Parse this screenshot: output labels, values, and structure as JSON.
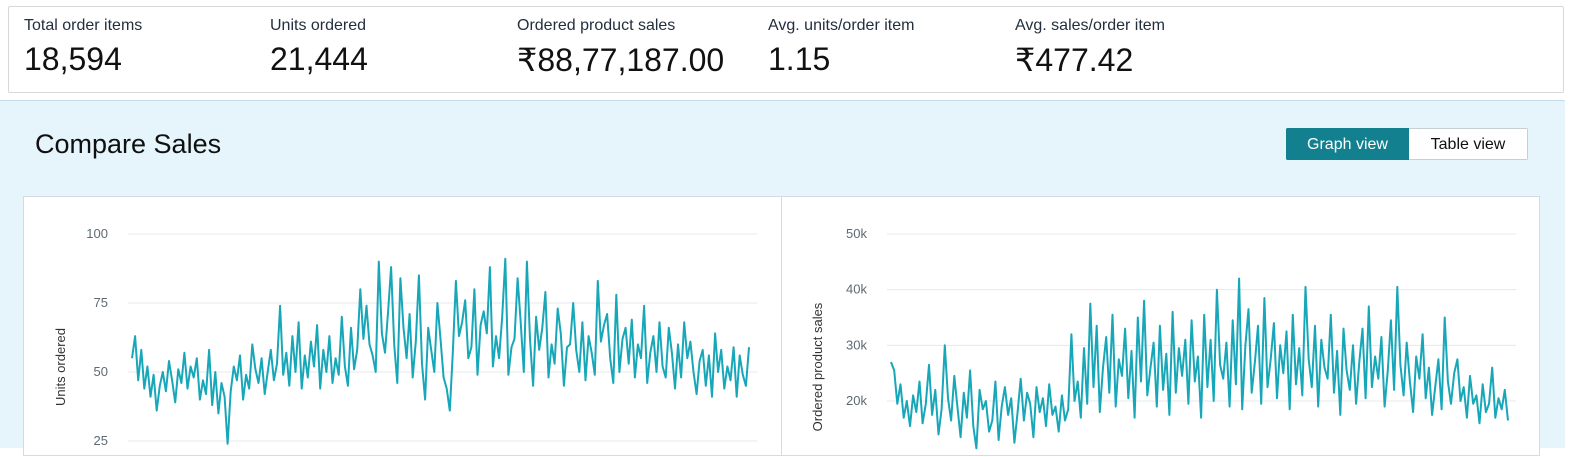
{
  "metrics": [
    {
      "label": "Total order items",
      "value": "18,594"
    },
    {
      "label": "Units ordered",
      "value": "21,444"
    },
    {
      "label": "Ordered product sales",
      "value": "₹88,77,187.00"
    },
    {
      "label": "Avg. units/order item",
      "value": "1.15"
    },
    {
      "label": "Avg. sales/order item",
      "value": "₹477.42"
    }
  ],
  "compare": {
    "title": "Compare Sales",
    "graph_view_label": "Graph view",
    "table_view_label": "Table view",
    "active_view": "graph"
  },
  "colors": {
    "accent": "#13808f",
    "line": "#17a7b8",
    "panel_bg": "#e6f4fc"
  },
  "chart_data": [
    {
      "type": "line",
      "title": "",
      "xlabel": "",
      "ylabel": "Units ordered",
      "y_ticks": [
        "100",
        "75",
        "50",
        "25"
      ],
      "y_tick_values": [
        100,
        75,
        50,
        25
      ],
      "ylim_visible": [
        25,
        100
      ],
      "grid": true,
      "series": [
        {
          "values": [
            55,
            63,
            47,
            58,
            44,
            52,
            41,
            49,
            36,
            45,
            50,
            43,
            54,
            47,
            39,
            51,
            46,
            57,
            44,
            52,
            48,
            55,
            40,
            47,
            42,
            58,
            38,
            50,
            35,
            46,
            41,
            24,
            43,
            52,
            47,
            56,
            40,
            49,
            44,
            60,
            51,
            46,
            55,
            42,
            50,
            58,
            47,
            53,
            74,
            49,
            57,
            45,
            63,
            50,
            68,
            44,
            56,
            48,
            61,
            52,
            67,
            44,
            58,
            50,
            63,
            46,
            55,
            49,
            70,
            52,
            45,
            66,
            51,
            58,
            80,
            62,
            74,
            60,
            56,
            50,
            90,
            64,
            57,
            72,
            88,
            60,
            46,
            84,
            66,
            55,
            71,
            48,
            61,
            85,
            53,
            40,
            66,
            58,
            50,
            75,
            62,
            48,
            44,
            36,
            57,
            83,
            63,
            68,
            76,
            55,
            59,
            80,
            49,
            67,
            72,
            64,
            88,
            52,
            63,
            55,
            70,
            91,
            49,
            59,
            62,
            84,
            68,
            50,
            90,
            62,
            45,
            70,
            58,
            66,
            79,
            48,
            60,
            53,
            73,
            64,
            45,
            59,
            60,
            75,
            58,
            50,
            68,
            47,
            63,
            57,
            49,
            83,
            61,
            67,
            71,
            55,
            46,
            78,
            50,
            62,
            66,
            53,
            69,
            48,
            60,
            55,
            74,
            46,
            57,
            63,
            50,
            68,
            52,
            48,
            66,
            57,
            44,
            60,
            48,
            68,
            55,
            61,
            50,
            42,
            54,
            58,
            45,
            56,
            41,
            64,
            50,
            58,
            44,
            52,
            47,
            59,
            41,
            56,
            49,
            45,
            59
          ],
          "approx": true
        }
      ]
    },
    {
      "type": "line",
      "title": "",
      "xlabel": "",
      "ylabel": "Ordered product sales",
      "y_ticks": [
        "50k",
        "40k",
        "30k",
        "20k"
      ],
      "y_tick_values": [
        50000,
        40000,
        30000,
        20000
      ],
      "ylim_visible": [
        20000,
        50000
      ],
      "grid": true,
      "series": [
        {
          "values": [
            27000,
            25500,
            19500,
            23000,
            17000,
            20000,
            15500,
            21000,
            18000,
            23500,
            16000,
            19500,
            26500,
            17500,
            22000,
            14000,
            18500,
            30000,
            20500,
            16500,
            24500,
            19000,
            13500,
            21500,
            17000,
            25500,
            15500,
            11500,
            22000,
            18500,
            20000,
            14500,
            16500,
            23500,
            13000,
            19000,
            22500,
            17500,
            20500,
            12500,
            18000,
            24000,
            16500,
            21500,
            19500,
            13500,
            22500,
            18000,
            20500,
            15500,
            23000,
            17500,
            19000,
            14500,
            21000,
            16500,
            18500,
            32000,
            20000,
            23500,
            17000,
            29500,
            19500,
            37500,
            22500,
            33500,
            18000,
            26000,
            31500,
            21500,
            35500,
            19000,
            27500,
            24500,
            33000,
            20500,
            29000,
            17000,
            35000,
            23500,
            38000,
            21000,
            26000,
            30500,
            19000,
            33500,
            22000,
            28500,
            17500,
            36000,
            21500,
            29500,
            24500,
            31000,
            19500,
            34500,
            23500,
            28000,
            17000,
            35500,
            22500,
            31000,
            20000,
            40000,
            26500,
            24000,
            30500,
            19000,
            34500,
            23000,
            42000,
            18500,
            30000,
            36500,
            21500,
            27000,
            33500,
            19500,
            38500,
            22500,
            27500,
            34000,
            20500,
            30000,
            25000,
            32500,
            18500,
            35500,
            23000,
            29500,
            21000,
            40500,
            27500,
            22500,
            33500,
            19000,
            31000,
            26000,
            24000,
            35500,
            21500,
            29000,
            17500,
            33000,
            25500,
            22000,
            30000,
            19500,
            27000,
            33000,
            20500,
            37000,
            22500,
            28000,
            24000,
            31500,
            19000,
            25500,
            34500,
            22000,
            40500,
            26500,
            21000,
            30500,
            23500,
            18000,
            28000,
            24000,
            32000,
            20500,
            26000,
            17500,
            22500,
            27500,
            18500,
            35000,
            23500,
            19500,
            25000,
            27500,
            20000,
            22500,
            17000,
            24500,
            19500,
            21000,
            16000,
            23000,
            18000,
            19500,
            26000,
            17000,
            20500,
            18500,
            22000,
            16500
          ]
        }
      ]
    }
  ]
}
